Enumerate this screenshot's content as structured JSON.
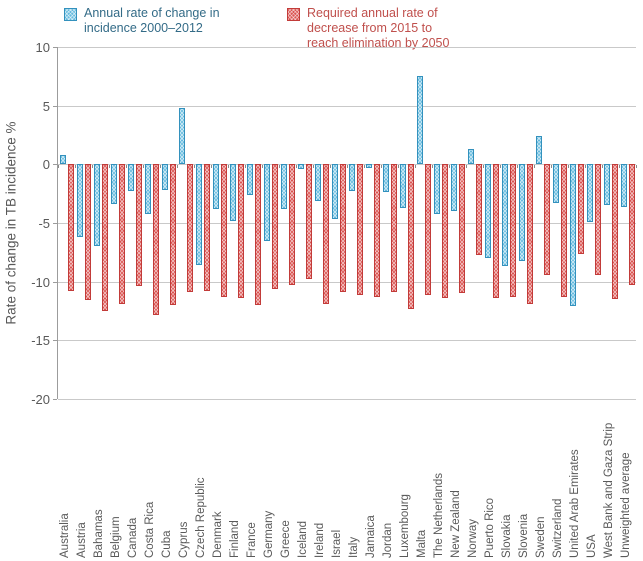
{
  "legend": [
    {
      "lines": [
        "Annual rate of change in",
        "incidence 2000–2012"
      ],
      "swatch_color": "#64bade",
      "text_color": "#336b87"
    },
    {
      "lines": [
        "Required annual rate of",
        "decrease from 2015 to",
        "reach elimination by 2050"
      ],
      "swatch_color": "#da5350",
      "text_color": "#c0504d"
    }
  ],
  "colors": {
    "blue_fill": "#64bade",
    "blue_border": "#3391bd",
    "red_fill": "#da5350",
    "red_border": "#c23b39",
    "gridline": "#c9c9c9",
    "axis": "#9c9c9c",
    "axis_text": "#595959"
  },
  "chart_data": {
    "type": "bar",
    "title": "",
    "xlabel": "",
    "ylabel": "Rate of change in TB incidence %",
    "ylim": [
      -20,
      10
    ],
    "yticks": [
      10,
      5,
      0,
      -5,
      -10,
      -15,
      -20
    ],
    "grid": true,
    "legend_position": "top",
    "categories": [
      "Australia",
      "Austria",
      "Bahamas",
      "Belgium",
      "Canada",
      "Costa Rica",
      "Cuba",
      "Cyprus",
      "Czech Republic",
      "Denmark",
      "Finland",
      "France",
      "Germany",
      "Greece",
      "Iceland",
      "Ireland",
      "Israel",
      "Italy",
      "Jamaica",
      "Jordan",
      "Luxembourg",
      "Malta",
      "The Netherlands",
      "New Zealand",
      "Norway",
      "Puerto Rico",
      "Slovakia",
      "Slovenia",
      "Sweden",
      "Switzerland",
      "United Arab Emirates",
      "USA",
      "West Bank and Gaza Strip",
      "Unweighted average"
    ],
    "series": [
      {
        "name": "Annual rate of change in incidence 2000–2012",
        "color": "#64bade",
        "values": [
          0.8,
          -6.2,
          -7.0,
          -3.4,
          -2.3,
          -4.2,
          -2.2,
          4.8,
          -8.6,
          -3.8,
          -4.8,
          -2.6,
          -6.5,
          -3.8,
          -0.4,
          -3.1,
          -4.7,
          -2.3,
          -0.3,
          -2.4,
          -3.7,
          7.5,
          -4.2,
          -4.0,
          1.3,
          -8.0,
          -8.7,
          -8.2,
          2.4,
          -3.3,
          -12.1,
          -4.9,
          -3.5,
          -3.6
        ]
      },
      {
        "name": "Required annual rate of decrease from 2015 to reach elimination by 2050",
        "color": "#da5350",
        "values": [
          -10.8,
          -11.6,
          -12.5,
          -11.9,
          -10.4,
          -12.8,
          -12.0,
          -10.9,
          -10.8,
          -11.3,
          -11.4,
          -12.0,
          -10.6,
          -10.3,
          -9.8,
          -11.9,
          -10.9,
          -11.1,
          -11.3,
          -10.9,
          -12.3,
          -11.1,
          -11.4,
          -11.0,
          -7.7,
          -11.4,
          -11.3,
          -11.9,
          -9.4,
          -11.3,
          -7.6,
          -9.4,
          -11.5,
          -10.3
        ]
      }
    ]
  }
}
